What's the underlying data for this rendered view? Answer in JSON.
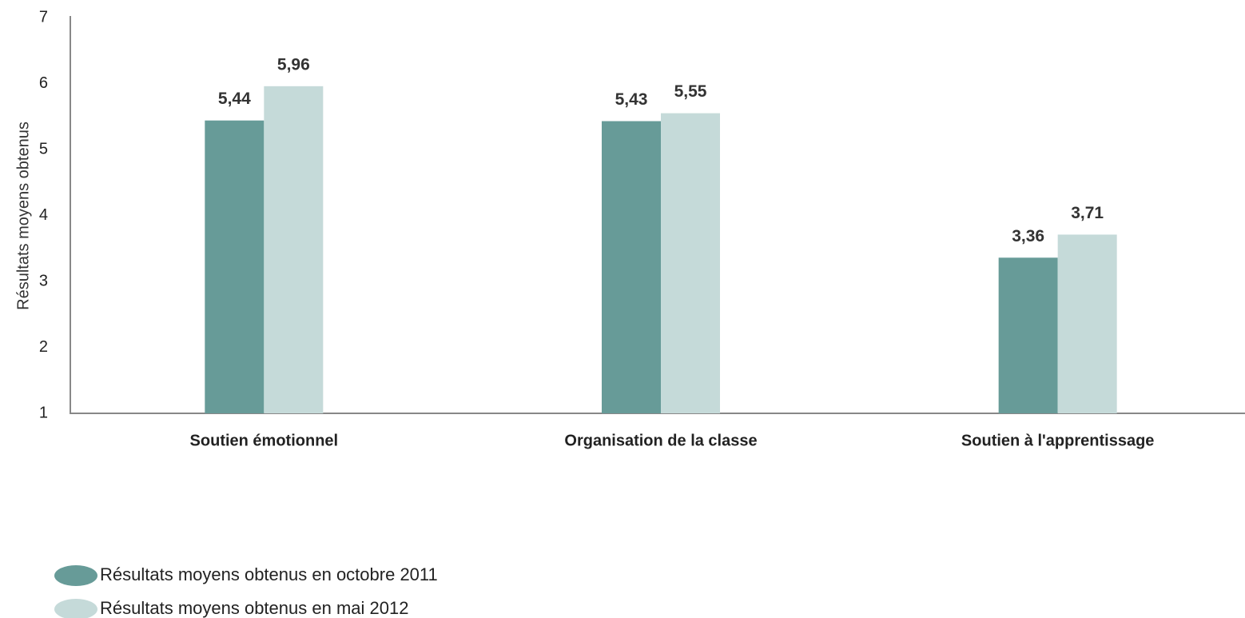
{
  "chart_data": {
    "type": "bar",
    "y_label": "Résultats moyens obtenus",
    "categories": [
      "Soutien émotionnel",
      "Organisation de la classe",
      "Soutien à l'apprentissage"
    ],
    "series": [
      {
        "name": "Résultats moyens obtenus en octobre 2011",
        "color": "#679b98",
        "values": [
          5.44,
          5.43,
          3.36
        ],
        "value_labels": [
          "5,44",
          "5,43",
          "3,36"
        ]
      },
      {
        "name": "Résultats moyens obtenus en mai 2012",
        "color": "#c5dad9",
        "values": [
          5.96,
          5.55,
          3.71
        ],
        "value_labels": [
          "5,96",
          "5,55",
          "3,71"
        ]
      }
    ],
    "ylim": [
      1,
      7
    ],
    "yticks": [
      1,
      2,
      3,
      4,
      5,
      6,
      7
    ],
    "grid": false,
    "legend": "bottom-left"
  }
}
